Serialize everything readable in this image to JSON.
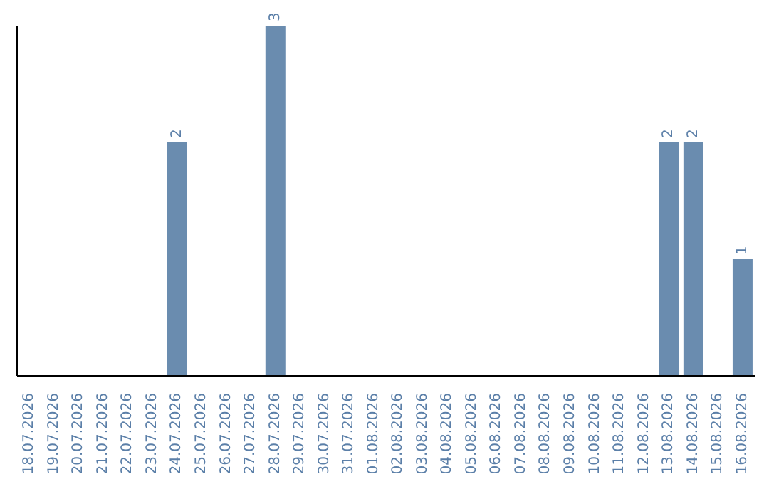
{
  "chart_data": {
    "type": "bar",
    "categories": [
      "18.07.2026",
      "19.07.2026",
      "20.07.2026",
      "21.07.2026",
      "22.07.2026",
      "23.07.2026",
      "24.07.2026",
      "25.07.2026",
      "26.07.2026",
      "27.07.2026",
      "28.07.2026",
      "29.07.2026",
      "30.07.2026",
      "31.07.2026",
      "01.08.2026",
      "02.08.2026",
      "03.08.2026",
      "04.08.2026",
      "05.08.2026",
      "06.08.2026",
      "07.08.2026",
      "08.08.2026",
      "09.08.2026",
      "10.08.2026",
      "11.08.2026",
      "12.08.2026",
      "13.08.2026",
      "14.08.2026",
      "15.08.2026",
      "16.08.2026"
    ],
    "series": [
      {
        "color": "#6a8caf",
        "values": [
          0,
          0,
          0,
          0,
          0,
          0,
          2,
          0,
          0,
          0,
          3,
          0,
          0,
          0,
          0,
          0,
          0,
          0,
          0,
          0,
          0,
          0,
          0,
          0,
          0,
          0,
          2,
          2,
          0,
          1
        ],
        "value_labels": [
          null,
          null,
          null,
          null,
          null,
          null,
          "2",
          null,
          null,
          null,
          "3",
          null,
          null,
          null,
          null,
          null,
          null,
          null,
          null,
          null,
          null,
          null,
          null,
          null,
          null,
          null,
          "2",
          "2",
          null,
          "1"
        ]
      }
    ],
    "grid": false,
    "legend": false
  }
}
